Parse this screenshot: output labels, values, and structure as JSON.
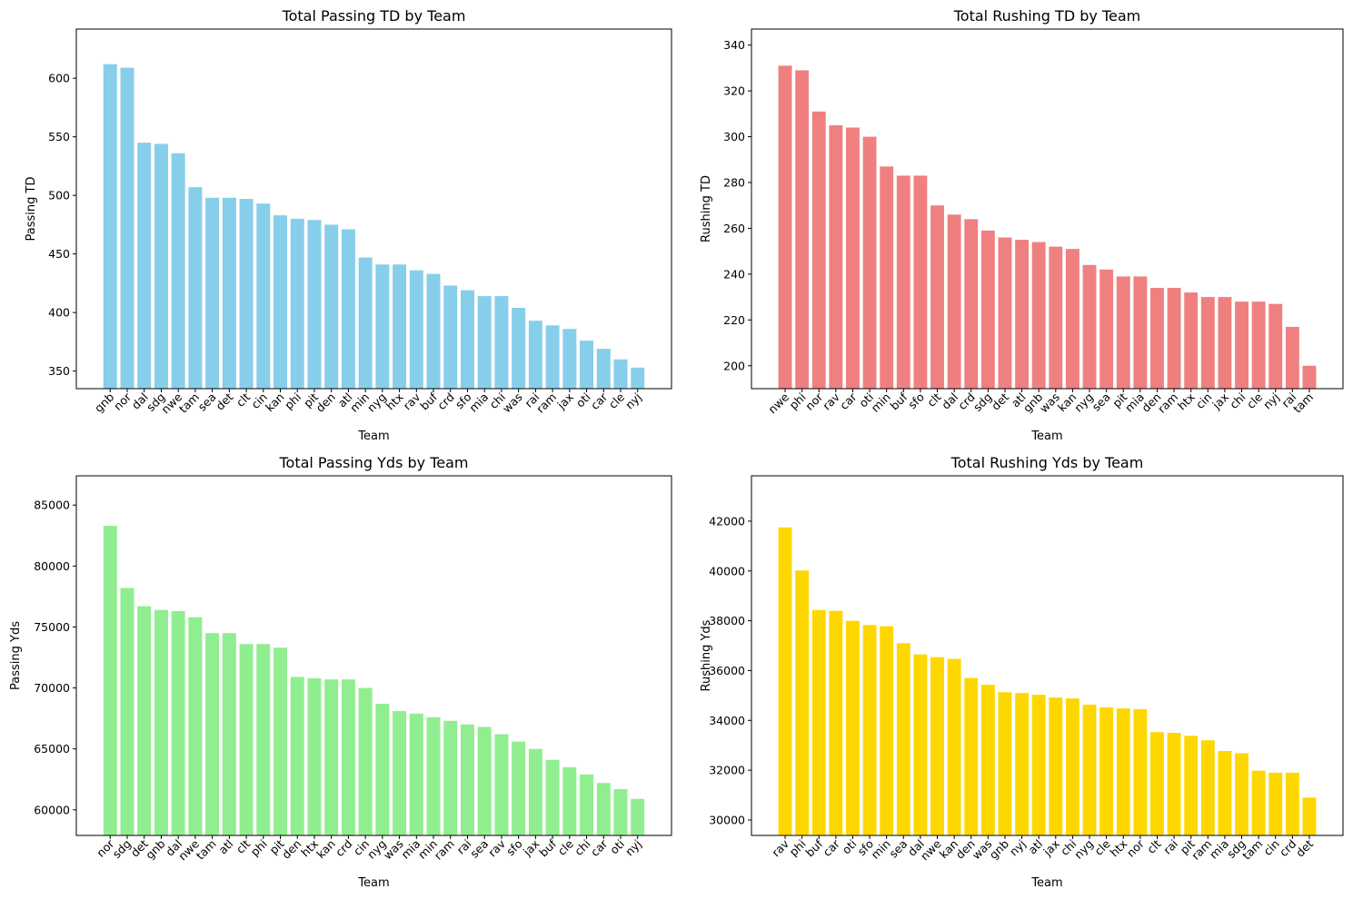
{
  "chart_data": [
    {
      "type": "bar",
      "title": "Total Passing TD by Team",
      "xlabel": "Team",
      "ylabel": "Passing TD",
      "color": "#87ceeb",
      "ylim": [
        335,
        642
      ],
      "yticks": [
        350,
        400,
        450,
        500,
        550,
        600
      ],
      "categories": [
        "gnb",
        "nor",
        "dal",
        "sdg",
        "nwe",
        "tam",
        "sea",
        "det",
        "clt",
        "cin",
        "kan",
        "phi",
        "pit",
        "den",
        "atl",
        "min",
        "nyg",
        "htx",
        "rav",
        "buf",
        "crd",
        "sfo",
        "mia",
        "chi",
        "was",
        "rai",
        "ram",
        "jax",
        "oti",
        "car",
        "cle",
        "nyj"
      ],
      "values": [
        612,
        609,
        545,
        544,
        536,
        507,
        498,
        498,
        497,
        493,
        483,
        480,
        479,
        475,
        471,
        447,
        441,
        441,
        436,
        433,
        423,
        419,
        414,
        414,
        404,
        393,
        389,
        386,
        376,
        369,
        360,
        353
      ]
    },
    {
      "type": "bar",
      "title": "Total Rushing TD by Team",
      "xlabel": "Team",
      "ylabel": "Rushing TD",
      "color": "#f08080",
      "ylim": [
        190,
        347
      ],
      "yticks": [
        200,
        220,
        240,
        260,
        280,
        300,
        320,
        340
      ],
      "categories": [
        "nwe",
        "phi",
        "nor",
        "rav",
        "car",
        "oti",
        "min",
        "buf",
        "sfo",
        "clt",
        "dal",
        "crd",
        "sdg",
        "det",
        "atl",
        "gnb",
        "was",
        "kan",
        "nyg",
        "sea",
        "pit",
        "mia",
        "den",
        "ram",
        "htx",
        "cin",
        "jax",
        "chi",
        "cle",
        "nyj",
        "rai",
        "tam"
      ],
      "values": [
        331,
        329,
        311,
        305,
        304,
        300,
        287,
        283,
        283,
        270,
        266,
        264,
        259,
        256,
        255,
        254,
        252,
        251,
        244,
        242,
        239,
        239,
        234,
        234,
        232,
        230,
        230,
        228,
        228,
        227,
        217,
        200
      ]
    },
    {
      "type": "bar",
      "title": "Total Passing Yds by Team",
      "xlabel": "Team",
      "ylabel": "Passing Yds",
      "color": "#90ee90",
      "ylim": [
        57900,
        87400
      ],
      "yticks": [
        60000,
        65000,
        70000,
        75000,
        80000,
        85000
      ],
      "categories": [
        "nor",
        "sdg",
        "det",
        "gnb",
        "dal",
        "nwe",
        "tam",
        "atl",
        "clt",
        "phi",
        "pit",
        "den",
        "htx",
        "kan",
        "crd",
        "cin",
        "nyg",
        "was",
        "mia",
        "min",
        "ram",
        "rai",
        "sea",
        "rav",
        "sfo",
        "jax",
        "buf",
        "cle",
        "chi",
        "car",
        "oti",
        "nyj"
      ],
      "values": [
        83300,
        78200,
        76700,
        76400,
        76300,
        75800,
        74500,
        74500,
        73600,
        73600,
        73300,
        70900,
        70800,
        70700,
        70700,
        70000,
        68700,
        68100,
        67900,
        67600,
        67300,
        67000,
        66800,
        66200,
        65600,
        65000,
        64100,
        63500,
        62900,
        62200,
        61700,
        60900
      ]
    },
    {
      "type": "bar",
      "title": "Total Rushing Yds by Team",
      "xlabel": "Team",
      "ylabel": "Rushing Yds",
      "color": "#ffd700",
      "ylim": [
        29380,
        43820
      ],
      "yticks": [
        30000,
        32000,
        34000,
        36000,
        38000,
        40000,
        42000
      ],
      "categories": [
        "rav",
        "phi",
        "buf",
        "car",
        "oti",
        "sfo",
        "min",
        "sea",
        "dal",
        "nwe",
        "kan",
        "den",
        "was",
        "gnb",
        "nyj",
        "atl",
        "jax",
        "chi",
        "nyg",
        "cle",
        "htx",
        "nor",
        "clt",
        "rai",
        "pit",
        "ram",
        "mia",
        "sdg",
        "tam",
        "cin",
        "crd",
        "det"
      ],
      "values": [
        41750,
        40020,
        38430,
        38400,
        38000,
        37830,
        37780,
        37100,
        36650,
        36540,
        36470,
        35700,
        35430,
        35130,
        35100,
        35030,
        34920,
        34880,
        34630,
        34520,
        34480,
        34450,
        33530,
        33500,
        33380,
        33200,
        32770,
        32680,
        31980,
        31900,
        31900,
        30900
      ]
    }
  ]
}
